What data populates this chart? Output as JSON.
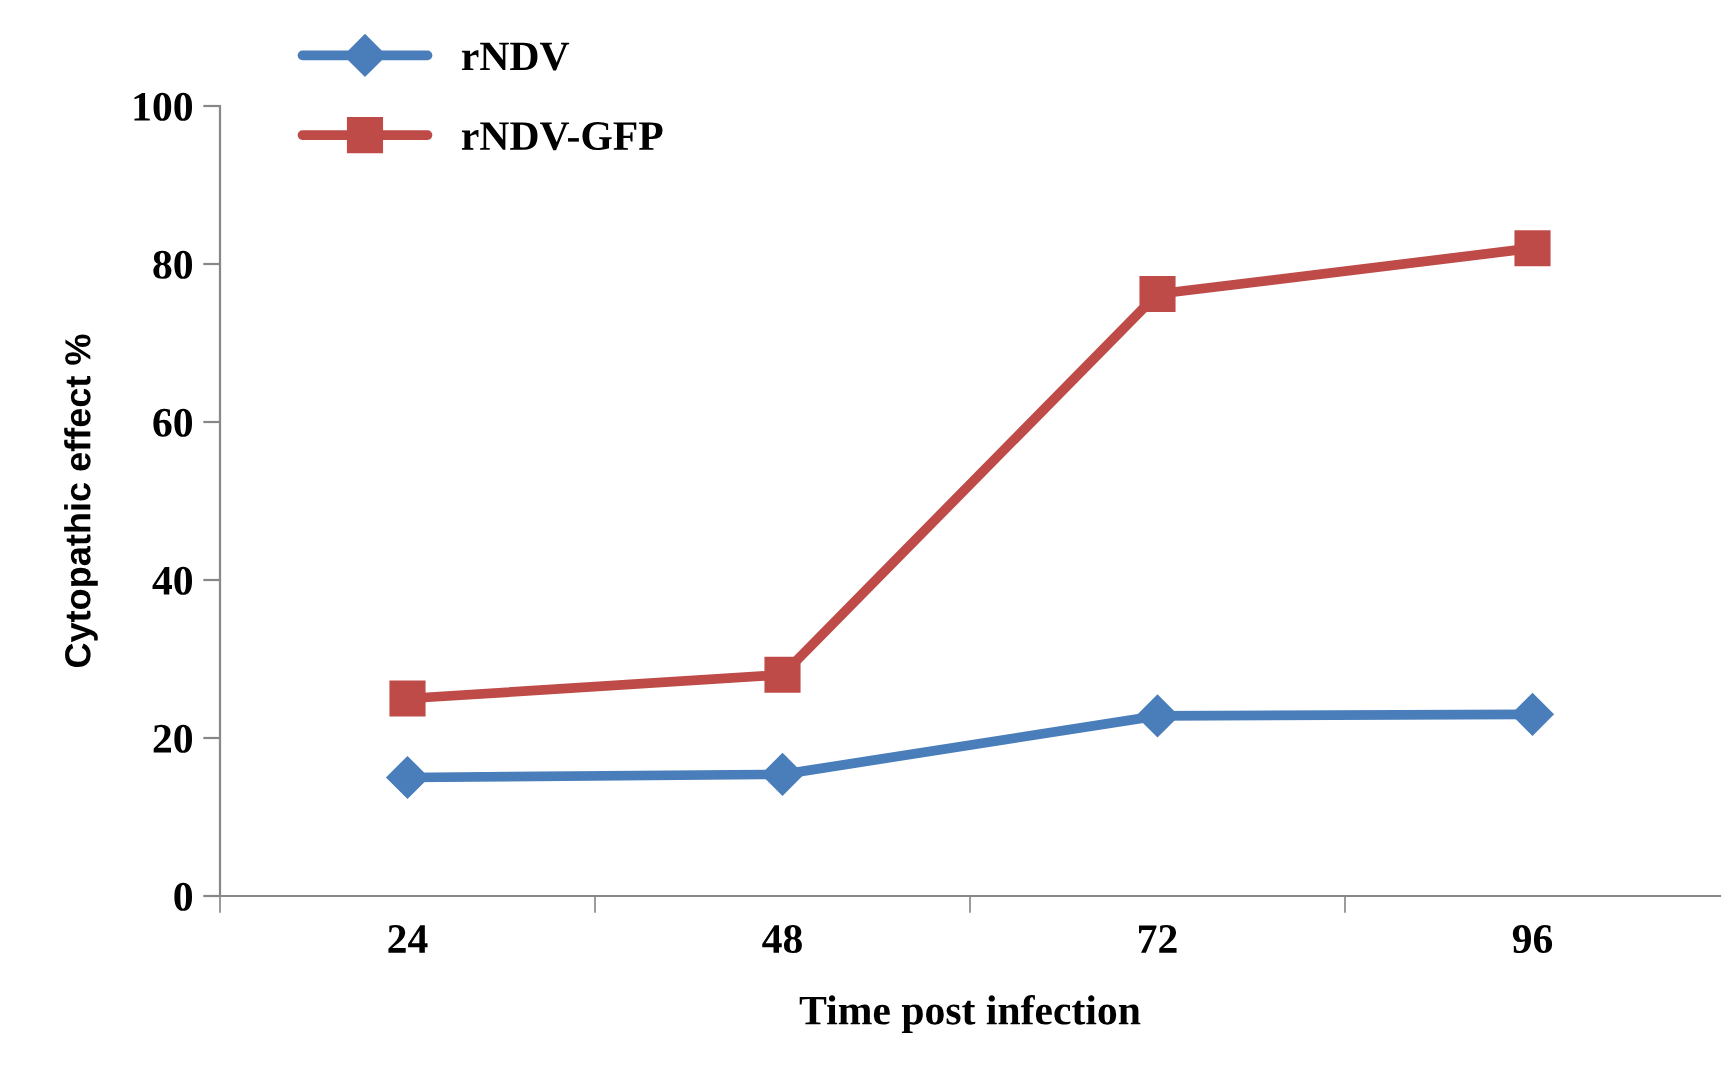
{
  "chart_data": {
    "type": "line",
    "categories": [
      "24",
      "48",
      "72",
      "96"
    ],
    "series": [
      {
        "name": "rNDV",
        "color": "#4a7ebb",
        "marker": "diamond",
        "values": [
          15,
          15.4,
          22.8,
          23
        ]
      },
      {
        "name": "rNDV-GFP",
        "color": "#be4b48",
        "marker": "square",
        "values": [
          25,
          28,
          76.2,
          82
        ]
      }
    ],
    "xlabel": "Time post infection",
    "ylabel": "Cytopathic effect %",
    "ylim": [
      0,
      100
    ],
    "yticks": [
      0,
      20,
      40,
      60,
      80,
      100
    ],
    "grid": false,
    "legend": "top left"
  }
}
